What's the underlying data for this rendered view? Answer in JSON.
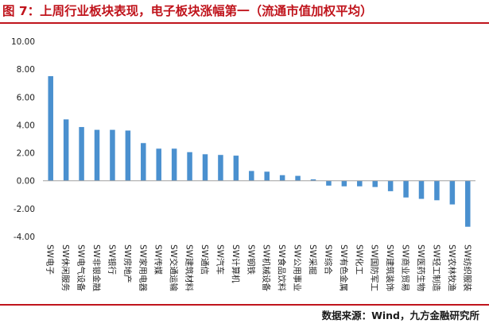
{
  "header": {
    "title": "图 7：上周行业板块表现，电子板块涨幅第一（流通市值加权平均）"
  },
  "footer": {
    "source": "数据来源：Wind，九方金融研究所"
  },
  "chart_data": {
    "type": "bar",
    "title": "图 7：上周行业板块表现，电子板块涨幅第一（流通市值加权平均）",
    "xlabel": "",
    "ylabel": "",
    "ylim": [
      -4,
      10
    ],
    "yticks": [
      "10.00",
      "8.00",
      "6.00",
      "4.00",
      "2.00",
      "0.00",
      "-2.00",
      "-4.00"
    ],
    "grid": false,
    "legend": "none",
    "bar_color": "#4a90cf",
    "categories": [
      "SW电子",
      "SW休闲服务",
      "SW电气设备",
      "SW非银金融",
      "SW银行",
      "SW房地产",
      "SW家用电器",
      "SW传媒",
      "SW交通运输",
      "SW建筑材料",
      "SW通信",
      "SW汽车",
      "SW计算机",
      "SW钢铁",
      "SW机械设备",
      "SW食品饮料",
      "SW公用事业",
      "SW采掘",
      "SW综合",
      "SW有色金属",
      "SW化工",
      "SW国防军工",
      "SW建筑装饰",
      "SW商业贸易",
      "SW医药生物",
      "SW轻工制造",
      "SW农林牧渔",
      "SW纺织服装"
    ],
    "values": [
      7.5,
      4.4,
      3.85,
      3.65,
      3.65,
      3.6,
      2.7,
      2.3,
      2.3,
      2.05,
      1.9,
      1.85,
      1.8,
      0.7,
      0.65,
      0.4,
      0.35,
      0.1,
      -0.35,
      -0.4,
      -0.4,
      -0.45,
      -0.75,
      -1.2,
      -1.3,
      -1.4,
      -1.7,
      -3.3
    ]
  }
}
